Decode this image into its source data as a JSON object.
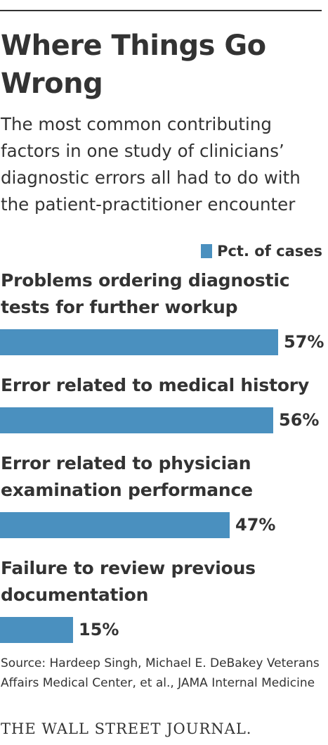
{
  "header": {
    "title": "Where Things Go Wrong",
    "subtitle": "The most common contributing factors in one study of clinicians’ diagnostic errors all had to do with the patient-practitioner encounter"
  },
  "legend": {
    "label": "Pct. of cases",
    "color": "#4a90bf"
  },
  "chart_data": {
    "type": "bar",
    "orientation": "horizontal",
    "categories": [
      "Problems ordering diagnostic tests for further workup",
      "Error related to medical history",
      "Error related to physician examination performance",
      "Failure to review previous documentation"
    ],
    "series": [
      {
        "name": "Pct. of cases",
        "values": [
          57,
          56,
          47,
          15
        ],
        "value_labels": [
          "57%",
          "56%",
          "47%",
          "15%"
        ],
        "color": "#4a90bf"
      }
    ],
    "xlim": [
      0,
      65
    ],
    "grid": false,
    "legend_placement": "top-right"
  },
  "footer": {
    "source": "Source: Hardeep Singh, Michael E. DeBakey Veterans Affairs Medical Center, et al., JAMA Internal Medicine",
    "credit": "THE WALL STREET JOURNAL."
  }
}
